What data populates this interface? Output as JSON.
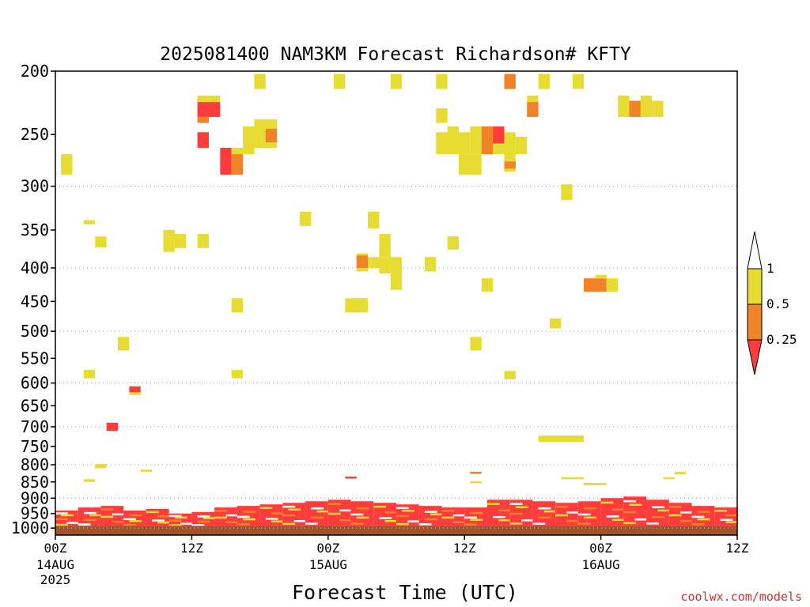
{
  "chart_data": {
    "type": "heatmap",
    "title": "2025081400 NAM3KM Forecast Richardson# KFTY",
    "xlabel": "Forecast Time (UTC)",
    "ylabel": "",
    "credit": "coolwx.com/models",
    "x_unit": "forecast hour",
    "xlim": [
      0,
      60
    ],
    "y_scale": "log",
    "ylim": [
      1025,
      200
    ],
    "y_ticks": [
      200,
      250,
      300,
      350,
      400,
      450,
      500,
      550,
      600,
      650,
      700,
      750,
      800,
      850,
      900,
      950,
      1000
    ],
    "y_tick_labels": [
      "200",
      "250",
      "300",
      "350",
      "400",
      "450",
      "500",
      "550",
      "600",
      "650",
      "700",
      "750",
      "800",
      "850",
      "900",
      "950",
      "1000"
    ],
    "y_gridlines": [
      300,
      400,
      500,
      600,
      700,
      800,
      900,
      1000
    ],
    "grid": true,
    "x_ticks": [
      {
        "hour": 0,
        "line1": "00Z",
        "line2": "14AUG",
        "line3": "2025"
      },
      {
        "hour": 12,
        "line1": "12Z",
        "line2": "",
        "line3": ""
      },
      {
        "hour": 24,
        "line1": "00Z",
        "line2": "15AUG",
        "line3": ""
      },
      {
        "hour": 36,
        "line1": "12Z",
        "line2": "",
        "line3": ""
      },
      {
        "hour": 48,
        "line1": "00Z",
        "line2": "16AUG",
        "line3": ""
      },
      {
        "hour": 60,
        "line1": "12Z",
        "line2": "",
        "line3": ""
      }
    ],
    "legend": {
      "placement": "right",
      "bounds": [
        "0.25",
        "0.5",
        "1"
      ],
      "colors": [
        "#ff3c3c",
        "#f08228",
        "#e6dc32"
      ],
      "bins": [
        "< 0.25",
        "0.25 - 0.5",
        "0.5 - 1"
      ]
    },
    "colors": {
      "lt025": "#ff3c3c",
      "b025_05": "#f08228",
      "b05_1": "#e6dc32",
      "ground": "#a0522d"
    },
    "ground_below_hpa": 992,
    "cells": [
      {
        "t0": 0.5,
        "t1": 1.5,
        "p0": 268,
        "p1": 288,
        "c": "b05_1"
      },
      {
        "t0": 2.5,
        "t1": 3.5,
        "p0": 338,
        "p1": 343,
        "c": "b05_1"
      },
      {
        "t0": 3.5,
        "t1": 4.5,
        "p0": 358,
        "p1": 372,
        "c": "b05_1"
      },
      {
        "t0": 2.5,
        "t1": 3.5,
        "p0": 573,
        "p1": 590,
        "c": "b05_1"
      },
      {
        "t0": 5.5,
        "t1": 6.5,
        "p0": 510,
        "p1": 535,
        "c": "b05_1"
      },
      {
        "t0": 3.5,
        "t1": 4.5,
        "p0": 798,
        "p1": 810,
        "c": "b05_1"
      },
      {
        "t0": 4.5,
        "t1": 5.5,
        "p0": 690,
        "p1": 710,
        "c": "lt025"
      },
      {
        "t0": 6.5,
        "t1": 7.5,
        "p0": 607,
        "p1": 620,
        "c": "lt025"
      },
      {
        "t0": 6.5,
        "t1": 7.5,
        "p0": 620,
        "p1": 626,
        "c": "b05_1"
      },
      {
        "t0": 9.5,
        "t1": 10.5,
        "p0": 350,
        "p1": 378,
        "c": "b05_1"
      },
      {
        "t0": 10.5,
        "t1": 11.5,
        "p0": 355,
        "p1": 373,
        "c": "b05_1"
      },
      {
        "t0": 12.5,
        "t1": 13.5,
        "p0": 355,
        "p1": 373,
        "c": "b05_1"
      },
      {
        "t0": 12.5,
        "t1": 14.5,
        "p0": 218,
        "p1": 223,
        "c": "b05_1"
      },
      {
        "t0": 12.5,
        "t1": 14.5,
        "p0": 223,
        "p1": 235,
        "c": "lt025"
      },
      {
        "t0": 12.5,
        "t1": 13.5,
        "p0": 235,
        "p1": 240,
        "c": "b025_05"
      },
      {
        "t0": 12.5,
        "t1": 13.5,
        "p0": 248,
        "p1": 262,
        "c": "lt025"
      },
      {
        "t0": 14.5,
        "t1": 15.5,
        "p0": 262,
        "p1": 288,
        "c": "lt025"
      },
      {
        "t0": 15.5,
        "t1": 16.5,
        "p0": 265,
        "p1": 288,
        "c": "b025_05"
      },
      {
        "t0": 15.5,
        "t1": 17.5,
        "p0": 262,
        "p1": 268,
        "c": "b05_1"
      },
      {
        "t0": 16.5,
        "t1": 17.5,
        "p0": 243,
        "p1": 265,
        "c": "b05_1"
      },
      {
        "t0": 17.5,
        "t1": 19.5,
        "p0": 237,
        "p1": 262,
        "c": "b05_1"
      },
      {
        "t0": 18.5,
        "t1": 19.5,
        "p0": 245,
        "p1": 257,
        "c": "b025_05"
      },
      {
        "t0": 17.5,
        "t1": 18.5,
        "p0": 202,
        "p1": 213,
        "c": "b05_1"
      },
      {
        "t0": 15.5,
        "t1": 16.5,
        "p0": 445,
        "p1": 468,
        "c": "b05_1"
      },
      {
        "t0": 15.5,
        "t1": 16.5,
        "p0": 573,
        "p1": 590,
        "c": "b05_1"
      },
      {
        "t0": 21.5,
        "t1": 22.5,
        "p0": 328,
        "p1": 345,
        "c": "b05_1"
      },
      {
        "t0": 24.5,
        "t1": 25.5,
        "p0": 202,
        "p1": 213,
        "c": "b05_1"
      },
      {
        "t0": 25.5,
        "t1": 27.5,
        "p0": 445,
        "p1": 468,
        "c": "b05_1"
      },
      {
        "t0": 27.5,
        "t1": 28.5,
        "p0": 328,
        "p1": 348,
        "c": "b05_1"
      },
      {
        "t0": 26.5,
        "t1": 27.5,
        "p0": 380,
        "p1": 405,
        "c": "b05_1"
      },
      {
        "t0": 26.5,
        "t1": 27.5,
        "p0": 383,
        "p1": 400,
        "c": "b025_05"
      },
      {
        "t0": 27.5,
        "t1": 30.5,
        "p0": 385,
        "p1": 400,
        "c": "b05_1"
      },
      {
        "t0": 28.5,
        "t1": 29.5,
        "p0": 355,
        "p1": 385,
        "c": "b05_1"
      },
      {
        "t0": 28.5,
        "t1": 29.5,
        "p0": 400,
        "p1": 408,
        "c": "b05_1"
      },
      {
        "t0": 29.5,
        "t1": 30.5,
        "p0": 400,
        "p1": 432,
        "c": "b05_1"
      },
      {
        "t0": 29.5,
        "t1": 30.5,
        "p0": 202,
        "p1": 213,
        "c": "b05_1"
      },
      {
        "t0": 32.5,
        "t1": 33.5,
        "p0": 385,
        "p1": 405,
        "c": "b05_1"
      },
      {
        "t0": 33.5,
        "t1": 34.5,
        "p0": 202,
        "p1": 213,
        "c": "b05_1"
      },
      {
        "t0": 33.5,
        "t1": 34.5,
        "p0": 228,
        "p1": 240,
        "c": "b05_1"
      },
      {
        "t0": 33.5,
        "t1": 35.5,
        "p0": 248,
        "p1": 268,
        "c": "b05_1"
      },
      {
        "t0": 34.5,
        "t1": 35.5,
        "p0": 243,
        "p1": 250,
        "c": "b05_1"
      },
      {
        "t0": 35.5,
        "t1": 36.5,
        "p0": 248,
        "p1": 268,
        "c": "b05_1"
      },
      {
        "t0": 34.5,
        "t1": 35.5,
        "p0": 358,
        "p1": 375,
        "c": "b05_1"
      },
      {
        "t0": 35.5,
        "t1": 37.5,
        "p0": 268,
        "p1": 288,
        "c": "b05_1"
      },
      {
        "t0": 36.5,
        "t1": 37.5,
        "p0": 243,
        "p1": 268,
        "c": "b05_1"
      },
      {
        "t0": 37.5,
        "t1": 38.5,
        "p0": 243,
        "p1": 268,
        "c": "b025_05"
      },
      {
        "t0": 38.5,
        "t1": 39.5,
        "p0": 243,
        "p1": 258,
        "c": "lt025"
      },
      {
        "t0": 38.5,
        "t1": 39.5,
        "p0": 258,
        "p1": 268,
        "c": "b05_1"
      },
      {
        "t0": 39.5,
        "t1": 40.5,
        "p0": 248,
        "p1": 285,
        "c": "b05_1"
      },
      {
        "t0": 39.5,
        "t1": 40.5,
        "p0": 275,
        "p1": 282,
        "c": "b025_05"
      },
      {
        "t0": 40.5,
        "t1": 41.5,
        "p0": 252,
        "p1": 268,
        "c": "b05_1"
      },
      {
        "t0": 36.5,
        "t1": 37.5,
        "p0": 510,
        "p1": 535,
        "c": "b05_1"
      },
      {
        "t0": 37.5,
        "t1": 38.5,
        "p0": 415,
        "p1": 435,
        "c": "b05_1"
      },
      {
        "t0": 39.5,
        "t1": 40.5,
        "p0": 575,
        "p1": 592,
        "c": "b05_1"
      },
      {
        "t0": 39.5,
        "t1": 40.5,
        "p0": 202,
        "p1": 213,
        "c": "b025_05"
      },
      {
        "t0": 41.5,
        "t1": 42.5,
        "p0": 218,
        "p1": 223,
        "c": "b05_1"
      },
      {
        "t0": 41.5,
        "t1": 42.5,
        "p0": 223,
        "p1": 235,
        "c": "b025_05"
      },
      {
        "t0": 42.5,
        "t1": 43.5,
        "p0": 202,
        "p1": 213,
        "c": "b05_1"
      },
      {
        "t0": 44.5,
        "t1": 45.5,
        "p0": 298,
        "p1": 315,
        "c": "b05_1"
      },
      {
        "t0": 43.5,
        "t1": 44.5,
        "p0": 478,
        "p1": 495,
        "c": "b05_1"
      },
      {
        "t0": 45.5,
        "t1": 46.5,
        "p0": 202,
        "p1": 213,
        "c": "b05_1"
      },
      {
        "t0": 42.5,
        "t1": 46.5,
        "p0": 722,
        "p1": 738,
        "c": "b05_1"
      },
      {
        "t0": 46.5,
        "t1": 48.5,
        "p0": 415,
        "p1": 435,
        "c": "b025_05"
      },
      {
        "t0": 47.5,
        "t1": 48.5,
        "p0": 410,
        "p1": 415,
        "c": "b05_1"
      },
      {
        "t0": 48.5,
        "t1": 49.5,
        "p0": 415,
        "p1": 435,
        "c": "b05_1"
      },
      {
        "t0": 49.5,
        "t1": 50.5,
        "p0": 218,
        "p1": 235,
        "c": "b05_1"
      },
      {
        "t0": 50.5,
        "t1": 51.5,
        "p0": 222,
        "p1": 235,
        "c": "b025_05"
      },
      {
        "t0": 51.5,
        "t1": 52.5,
        "p0": 218,
        "p1": 235,
        "c": "b05_1"
      },
      {
        "t0": 52.5,
        "t1": 53.5,
        "p0": 222,
        "p1": 235,
        "c": "b05_1"
      },
      {
        "t0": 44.5,
        "t1": 46.5,
        "p0": 836,
        "p1": 842,
        "c": "b05_1"
      },
      {
        "t0": 46.5,
        "t1": 48.5,
        "p0": 853,
        "p1": 860,
        "c": "b05_1"
      },
      {
        "t0": 53.5,
        "t1": 54.5,
        "p0": 836,
        "p1": 842,
        "c": "b05_1"
      },
      {
        "t0": 54.5,
        "t1": 55.5,
        "p0": 820,
        "p1": 828,
        "c": "b05_1"
      },
      {
        "t0": 36.5,
        "t1": 37.5,
        "p0": 820,
        "p1": 826,
        "c": "b025_05"
      },
      {
        "t0": 25.5,
        "t1": 26.5,
        "p0": 834,
        "p1": 840,
        "c": "lt025"
      },
      {
        "t0": 7.5,
        "t1": 8.5,
        "p0": 814,
        "p1": 820,
        "c": "b05_1"
      },
      {
        "t0": 2.5,
        "t1": 3.5,
        "p0": 842,
        "p1": 850,
        "c": "b05_1"
      },
      {
        "t0": 36.5,
        "t1": 37.5,
        "p0": 848,
        "p1": 854,
        "c": "b05_1"
      }
    ],
    "boundary_layer": {
      "note": "dense band of thin cells between ~860 and ~990 hPa",
      "columns": [
        {
          "t0": 0,
          "t1": 2,
          "top": 940,
          "c": "lt025"
        },
        {
          "t0": 2,
          "t1": 4,
          "top": 930,
          "c": "lt025"
        },
        {
          "t0": 4,
          "t1": 6,
          "top": 925,
          "c": "lt025"
        },
        {
          "t0": 6,
          "t1": 8,
          "top": 940,
          "c": "lt025"
        },
        {
          "t0": 8,
          "t1": 10,
          "top": 935,
          "c": "lt025"
        },
        {
          "t0": 10,
          "t1": 12,
          "top": 950,
          "c": "lt025"
        },
        {
          "t0": 12,
          "t1": 14,
          "top": 945,
          "c": "lt025"
        },
        {
          "t0": 14,
          "t1": 16,
          "top": 930,
          "c": "lt025"
        },
        {
          "t0": 16,
          "t1": 18,
          "top": 925,
          "c": "lt025"
        },
        {
          "t0": 18,
          "t1": 20,
          "top": 920,
          "c": "lt025"
        },
        {
          "t0": 20,
          "t1": 22,
          "top": 915,
          "c": "lt025"
        },
        {
          "t0": 22,
          "t1": 24,
          "top": 910,
          "c": "lt025"
        },
        {
          "t0": 24,
          "t1": 26,
          "top": 905,
          "c": "lt025"
        },
        {
          "t0": 26,
          "t1": 28,
          "top": 910,
          "c": "lt025"
        },
        {
          "t0": 28,
          "t1": 30,
          "top": 915,
          "c": "lt025"
        },
        {
          "t0": 30,
          "t1": 32,
          "top": 920,
          "c": "lt025"
        },
        {
          "t0": 32,
          "t1": 34,
          "top": 925,
          "c": "lt025"
        },
        {
          "t0": 34,
          "t1": 36,
          "top": 930,
          "c": "lt025"
        },
        {
          "t0": 36,
          "t1": 38,
          "top": 930,
          "c": "lt025"
        },
        {
          "t0": 38,
          "t1": 40,
          "top": 905,
          "c": "lt025"
        },
        {
          "t0": 40,
          "t1": 42,
          "top": 905,
          "c": "lt025"
        },
        {
          "t0": 42,
          "t1": 44,
          "top": 910,
          "c": "lt025"
        },
        {
          "t0": 44,
          "t1": 46,
          "top": 915,
          "c": "lt025"
        },
        {
          "t0": 46,
          "t1": 48,
          "top": 910,
          "c": "lt025"
        },
        {
          "t0": 48,
          "t1": 50,
          "top": 900,
          "c": "lt025"
        },
        {
          "t0": 50,
          "t1": 52,
          "top": 895,
          "c": "lt025"
        },
        {
          "t0": 52,
          "t1": 54,
          "top": 905,
          "c": "lt025"
        },
        {
          "t0": 54,
          "t1": 56,
          "top": 915,
          "c": "lt025"
        },
        {
          "t0": 56,
          "t1": 58,
          "top": 925,
          "c": "lt025"
        },
        {
          "t0": 58,
          "t1": 60,
          "top": 930,
          "c": "lt025"
        }
      ]
    }
  }
}
